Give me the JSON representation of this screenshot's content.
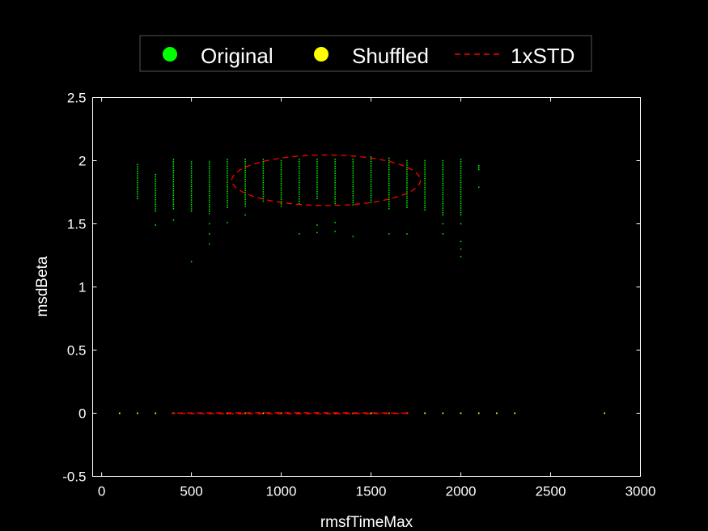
{
  "chart_data": {
    "type": "scatter",
    "xlabel": "rmsfTimeMax",
    "ylabel": "msdBeta",
    "xlim": [
      -50,
      3000
    ],
    "ylim": [
      -0.5,
      2.5
    ],
    "xticks": [
      "0",
      "500",
      "1000",
      "1500",
      "2000",
      "2500",
      "3000"
    ],
    "yticks": [
      "-0.5",
      "0",
      "0.5",
      "1",
      "1.5",
      "2",
      "2.5"
    ],
    "grid": false,
    "legend": {
      "position": "top",
      "entries": [
        "Original",
        "Shuffled",
        "1xSTD"
      ]
    },
    "colors": {
      "original": "#00ff00",
      "shuffled": "#ffff00",
      "std": "#ff0000",
      "axes": "#ffffff",
      "background": "#000000"
    },
    "series": [
      {
        "name": "Original",
        "marker": "dot",
        "columns": [
          {
            "x": 200,
            "y_min": 1.7,
            "y_max": 1.97,
            "outliers": []
          },
          {
            "x": 300,
            "y_min": 1.6,
            "y_max": 1.89,
            "outliers": [
              1.49
            ]
          },
          {
            "x": 400,
            "y_min": 1.62,
            "y_max": 2.01,
            "outliers": [
              1.53
            ]
          },
          {
            "x": 500,
            "y_min": 1.6,
            "y_max": 1.99,
            "outliers": [
              1.2
            ]
          },
          {
            "x": 600,
            "y_min": 1.58,
            "y_max": 1.99,
            "outliers": [
              1.5,
              1.42,
              1.34
            ]
          },
          {
            "x": 700,
            "y_min": 1.63,
            "y_max": 2.01,
            "outliers": [
              1.51
            ]
          },
          {
            "x": 800,
            "y_min": 1.64,
            "y_max": 2.01,
            "outliers": [
              1.57
            ]
          },
          {
            "x": 900,
            "y_min": 1.68,
            "y_max": 2.01,
            "outliers": []
          },
          {
            "x": 1000,
            "y_min": 1.64,
            "y_max": 2.0,
            "outliers": []
          },
          {
            "x": 1100,
            "y_min": 1.66,
            "y_max": 2.01,
            "outliers": [
              1.42
            ]
          },
          {
            "x": 1200,
            "y_min": 1.7,
            "y_max": 2.01,
            "outliers": [
              1.49,
              1.43
            ]
          },
          {
            "x": 1300,
            "y_min": 1.66,
            "y_max": 2.01,
            "outliers": [
              1.51,
              1.44
            ]
          },
          {
            "x": 1400,
            "y_min": 1.65,
            "y_max": 2.01,
            "outliers": [
              1.4
            ]
          },
          {
            "x": 1500,
            "y_min": 1.67,
            "y_max": 2.03,
            "outliers": []
          },
          {
            "x": 1600,
            "y_min": 1.62,
            "y_max": 2.02,
            "outliers": [
              1.42
            ]
          },
          {
            "x": 1700,
            "y_min": 1.63,
            "y_max": 2.0,
            "outliers": [
              1.42
            ]
          },
          {
            "x": 1800,
            "y_min": 1.61,
            "y_max": 2.0,
            "outliers": []
          },
          {
            "x": 1900,
            "y_min": 1.57,
            "y_max": 2.0,
            "outliers": [
              1.5,
              1.42
            ]
          },
          {
            "x": 2000,
            "y_min": 1.57,
            "y_max": 2.01,
            "outliers": [
              1.5,
              1.36,
              1.3,
              1.24
            ]
          },
          {
            "x": 2100,
            "y_min": 1.93,
            "y_max": 1.96,
            "outliers": [
              1.79
            ]
          }
        ]
      },
      {
        "name": "Shuffled",
        "marker": "dot",
        "x": [
          100,
          200,
          300,
          400,
          500,
          600,
          700,
          800,
          900,
          1000,
          1100,
          1200,
          1300,
          1400,
          1500,
          1600,
          1700,
          1800,
          1900,
          2000,
          2100,
          2200,
          2300,
          2800
        ],
        "y": [
          0,
          0,
          0,
          0,
          0,
          0,
          0,
          0,
          0,
          0,
          0,
          0,
          0,
          0,
          0,
          0,
          0,
          0,
          0,
          0,
          0,
          0,
          0,
          0
        ]
      }
    ],
    "std_ellipses": [
      {
        "name": "1xSTD",
        "series": "Original",
        "center": [
          1250,
          1.845
        ],
        "radius_x": 525,
        "radius_y": 0.2
      },
      {
        "name": "1xSTD",
        "series": "Shuffled",
        "center": [
          1050,
          0.0
        ],
        "radius_x": 660,
        "radius_y": 0.004
      }
    ]
  }
}
